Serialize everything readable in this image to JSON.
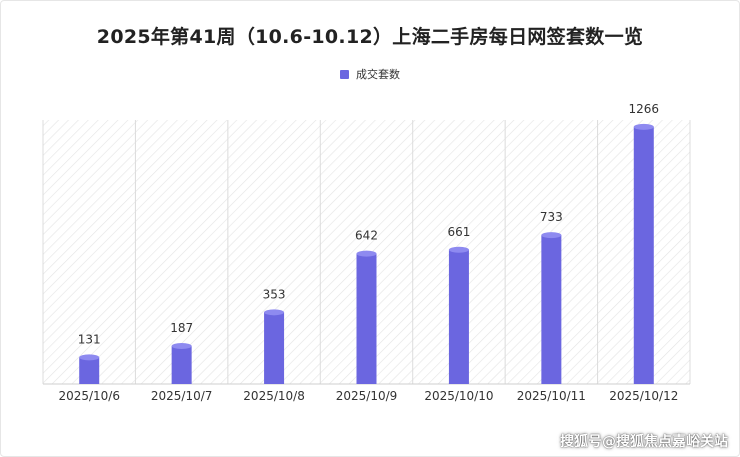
{
  "chart_data": {
    "type": "bar",
    "title": "2025年第41周（10.6-10.12）上海二手房每日网签套数一览",
    "categories": [
      "2025/10/6",
      "2025/10/7",
      "2025/10/8",
      "2025/10/9",
      "2025/10/10",
      "2025/10/11",
      "2025/10/12"
    ],
    "series": [
      {
        "name": "成交套数",
        "values": [
          131,
          187,
          353,
          642,
          661,
          733,
          1266
        ],
        "color": "#6b66e0"
      }
    ],
    "ylim": [
      0,
      1300
    ],
    "grid": false,
    "legend_position": "top-center",
    "bar_style": "cylinder",
    "background_pattern": "diagonal-hatch"
  },
  "watermark": "搜狐号@搜狐焦点嘉峪关站"
}
